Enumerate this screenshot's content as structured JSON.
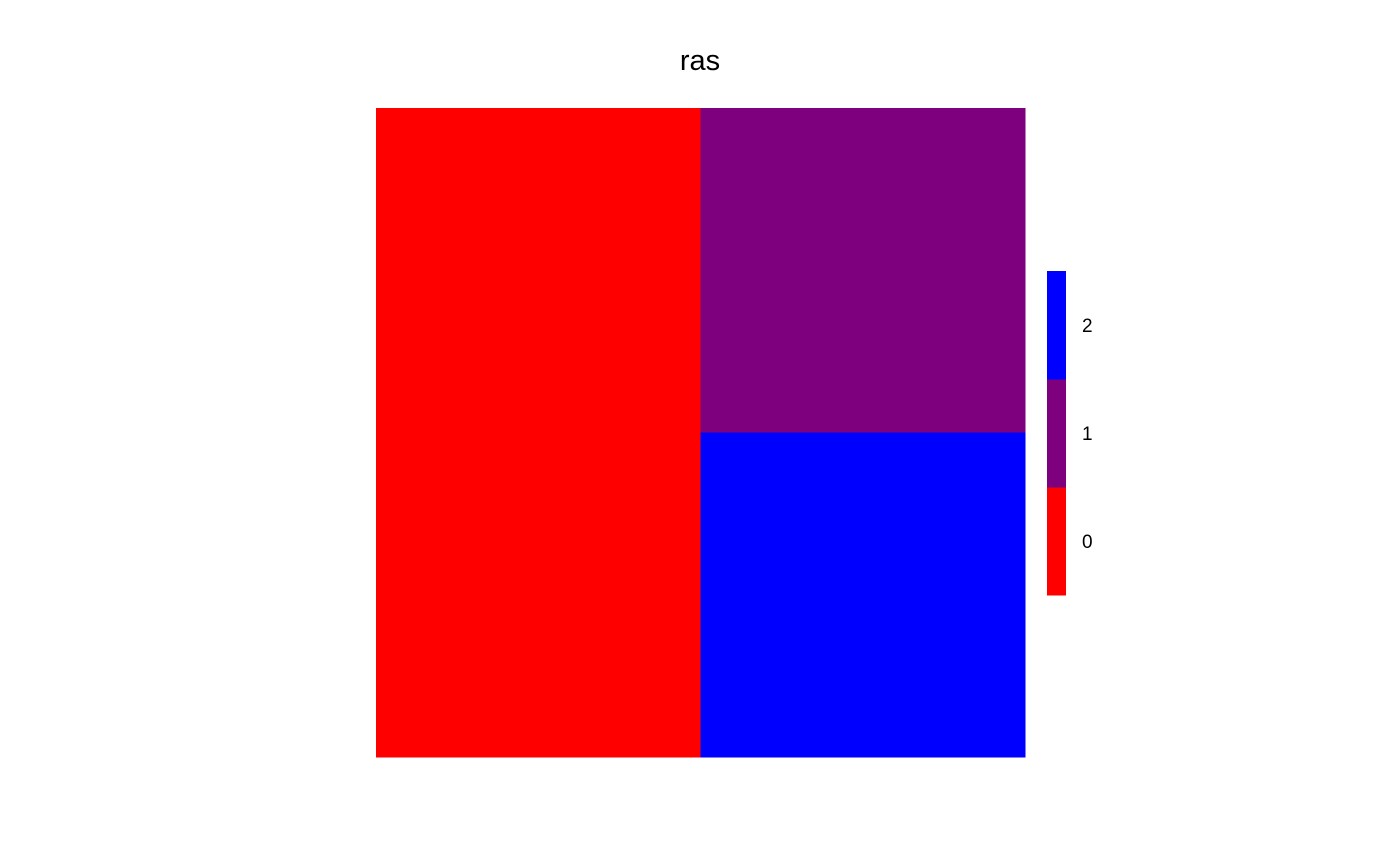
{
  "chart_data": {
    "type": "heatmap",
    "title": "ras",
    "grid": false,
    "legend_placement": "right",
    "nrows": 2,
    "ncols": 2,
    "cells": [
      [
        0,
        1
      ],
      [
        0,
        2
      ]
    ],
    "legend": {
      "type": "discrete",
      "entries": [
        {
          "value": 0,
          "label": "0",
          "color": "#FF0000"
        },
        {
          "value": 1,
          "label": "1",
          "color": "#7F007F"
        },
        {
          "value": 2,
          "label": "2",
          "color": "#0000FF"
        }
      ]
    }
  }
}
